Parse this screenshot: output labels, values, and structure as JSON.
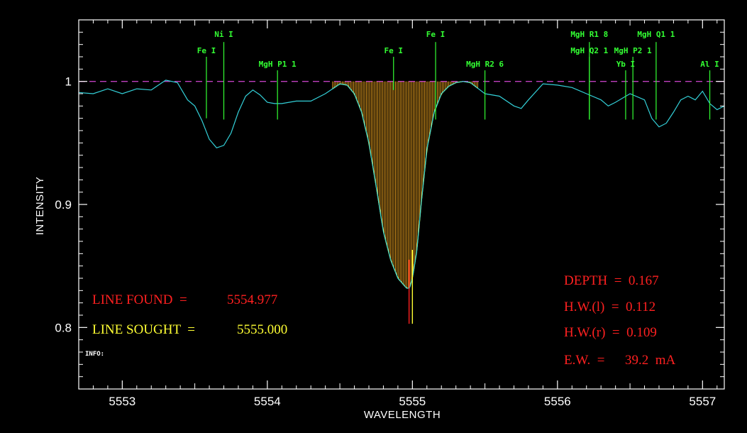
{
  "chart_data": {
    "type": "line",
    "xlabel": "WAVELENGTH",
    "ylabel": "INTENSITY",
    "xlim": [
      5552.7,
      5557.15
    ],
    "ylim": [
      0.75,
      1.05
    ],
    "xticks": [
      5553,
      5554,
      5555,
      5556,
      5557
    ],
    "yticks": [
      0.8,
      0.9,
      1
    ],
    "ytick_labels": [
      "0.8",
      "0.9",
      "1"
    ],
    "continuum": 1.0,
    "colors": {
      "spectrum": "#33d0d8",
      "continuum": "#c040c0",
      "lines": "#33ff33",
      "fill": "#e8a020",
      "fit": "#ffff33",
      "found": "#ff2020",
      "sought": "#ffff33"
    },
    "spectrum": {
      "x": [
        5552.7,
        5552.8,
        5552.9,
        5553.0,
        5553.1,
        5553.2,
        5553.3,
        5553.38,
        5553.45,
        5553.5,
        5553.55,
        5553.6,
        5553.65,
        5553.7,
        5553.75,
        5553.8,
        5553.85,
        5553.9,
        5553.95,
        5554.0,
        5554.05,
        5554.1,
        5554.2,
        5554.3,
        5554.4,
        5554.5,
        5554.55,
        5554.6,
        5554.65,
        5554.7,
        5554.75,
        5554.8,
        5554.85,
        5554.9,
        5554.93,
        5554.96,
        5554.98,
        5555.0,
        5555.03,
        5555.06,
        5555.1,
        5555.15,
        5555.2,
        5555.25,
        5555.3,
        5555.35,
        5555.4,
        5555.5,
        5555.6,
        5555.7,
        5555.75,
        5555.8,
        5555.9,
        5556.0,
        5556.1,
        5556.2,
        5556.3,
        5556.35,
        5556.4,
        5556.5,
        5556.6,
        5556.65,
        5556.7,
        5556.75,
        5556.8,
        5556.85,
        5556.9,
        5556.95,
        5557.0,
        5557.05,
        5557.1,
        5557.15
      ],
      "y": [
        0.991,
        0.99,
        0.994,
        0.99,
        0.994,
        0.993,
        1.001,
        0.999,
        0.985,
        0.98,
        0.968,
        0.953,
        0.946,
        0.948,
        0.958,
        0.975,
        0.988,
        0.993,
        0.989,
        0.983,
        0.982,
        0.982,
        0.984,
        0.984,
        0.99,
        0.998,
        0.997,
        0.99,
        0.975,
        0.95,
        0.915,
        0.878,
        0.855,
        0.84,
        0.836,
        0.832,
        0.832,
        0.84,
        0.862,
        0.9,
        0.945,
        0.975,
        0.99,
        0.996,
        0.999,
        1.0,
        0.999,
        0.99,
        0.988,
        0.98,
        0.978,
        0.985,
        0.998,
        0.997,
        0.995,
        0.99,
        0.985,
        0.98,
        0.983,
        0.99,
        0.985,
        0.97,
        0.963,
        0.966,
        0.975,
        0.985,
        0.988,
        0.985,
        0.992,
        0.982,
        0.977,
        0.98
      ]
    },
    "fit_region": [
      5554.45,
      5555.45
    ],
    "line_found": 5554.977,
    "line_sought": 5555.0,
    "annotations": [
      {
        "label": "Fe I",
        "x": 5553.58,
        "top": 1.02,
        "bottom": 0.97,
        "row": 2
      },
      {
        "label": "Ni I",
        "x": 5553.7,
        "top": 1.032,
        "bottom": 0.969,
        "row": 1
      },
      {
        "label": "MgH P1 1",
        "x": 5554.07,
        "top": 1.009,
        "bottom": 0.969,
        "row": 3
      },
      {
        "label": "Fe I",
        "x": 5554.87,
        "top": 1.02,
        "bottom": 0.993,
        "row": 2
      },
      {
        "label": "Fe I",
        "x": 5555.16,
        "top": 1.032,
        "bottom": 0.969,
        "row": 1
      },
      {
        "label": "MgH R2 6",
        "x": 5555.5,
        "top": 1.009,
        "bottom": 0.969,
        "row": 3
      },
      {
        "label": "MgH R1 8",
        "x": 5556.22,
        "top": 1.032,
        "bottom": 0.969,
        "row": 1
      },
      {
        "label": "MgH Q2 1",
        "x": 5556.22,
        "top": 1.02,
        "bottom": 0.969,
        "row": 2
      },
      {
        "label": "MgH P2 1",
        "x": 5556.52,
        "top": 1.02,
        "bottom": 0.969,
        "row": 2
      },
      {
        "label": "Yb I",
        "x": 5556.47,
        "top": 1.009,
        "bottom": 0.969,
        "row": 3
      },
      {
        "label": "MgH Q1 1",
        "x": 5556.68,
        "top": 1.032,
        "bottom": 0.969,
        "row": 1
      },
      {
        "label": "Al I",
        "x": 5557.05,
        "top": 1.009,
        "bottom": 0.969,
        "row": 3
      }
    ]
  },
  "readouts": {
    "line_found_label": "LINE FOUND  =",
    "line_found_value": "5554.977",
    "line_sought_label": "LINE SOUGHT  =",
    "line_sought_value": "5555.000",
    "info_label": "INFO:",
    "depth": "DEPTH  =  0.167",
    "hw_l": "H.W.(l)  =  0.112",
    "hw_r": "H.W.(r)  =  0.109",
    "ew": "E.W.  =      39.2  mA"
  }
}
